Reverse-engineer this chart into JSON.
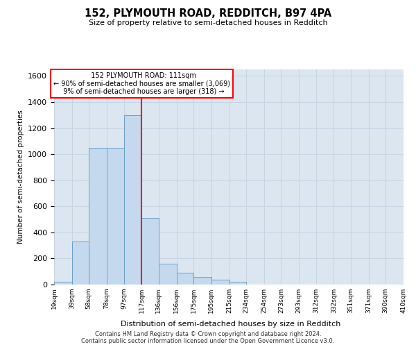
{
  "title1": "152, PLYMOUTH ROAD, REDDITCH, B97 4PA",
  "title2": "Size of property relative to semi-detached houses in Redditch",
  "xlabel": "Distribution of semi-detached houses by size in Redditch",
  "ylabel": "Number of semi-detached properties",
  "property_label": "152 PLYMOUTH ROAD: 111sqm",
  "pct_smaller": 90,
  "count_smaller": 3069,
  "pct_larger": 9,
  "count_larger": 318,
  "footer1": "Contains HM Land Registry data © Crown copyright and database right 2024.",
  "footer2": "Contains public sector information licensed under the Open Government Licence v3.0.",
  "bins": [
    19,
    39,
    58,
    78,
    97,
    117,
    136,
    156,
    175,
    195,
    215,
    234,
    254,
    273,
    293,
    312,
    332,
    351,
    371,
    390,
    410
  ],
  "bar_values": [
    20,
    330,
    1050,
    1050,
    1300,
    510,
    160,
    90,
    60,
    35,
    20,
    0,
    0,
    0,
    0,
    0,
    0,
    0,
    0,
    0
  ],
  "bar_color": "#c5d9ee",
  "bar_edge_color": "#6a9fc8",
  "red_line_x": 117,
  "ylim": [
    0,
    1650
  ],
  "yticks": [
    0,
    200,
    400,
    600,
    800,
    1000,
    1200,
    1400,
    1600
  ],
  "grid_color": "#c8d4e4",
  "bg_color": "#dce6f0"
}
